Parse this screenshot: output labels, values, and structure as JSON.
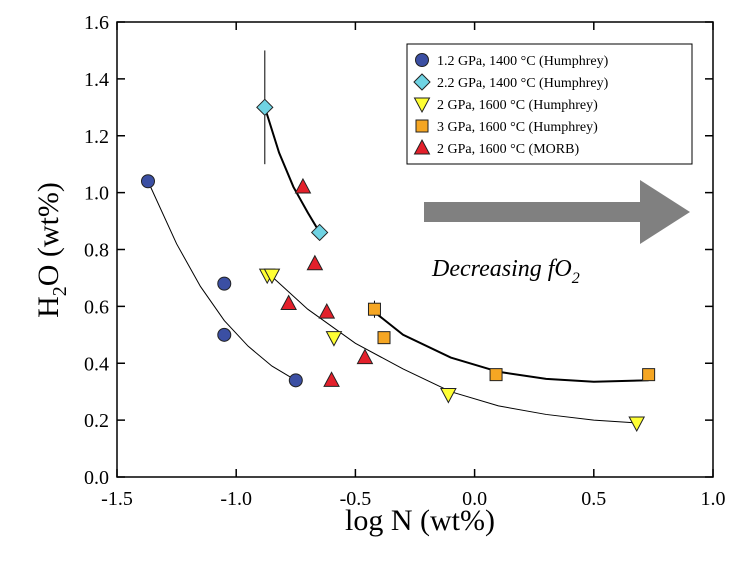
{
  "chart_data": {
    "type": "scatter",
    "xlabel": "log N (wt%)",
    "ylabel": {
      "main": "H",
      "sub": "2",
      "rest": "O (wt%)"
    },
    "annotation": {
      "text": "Decreasing fO",
      "sub": "2"
    },
    "xlim": [
      -1.5,
      1.0
    ],
    "ylim": [
      0,
      1.6
    ],
    "xticks": [
      {
        "value": -1.5,
        "label": "-1.5"
      },
      {
        "value": -1.0,
        "label": "-1.0"
      },
      {
        "value": -0.5,
        "label": "-0.5"
      },
      {
        "value": 0,
        "label": "0.0"
      },
      {
        "value": 0.5,
        "label": "0.5"
      },
      {
        "value": 1.0,
        "label": "1.0"
      }
    ],
    "yticks": [
      {
        "value": 0,
        "label": "0.0"
      },
      0.2,
      0.4,
      0.6,
      0.8,
      {
        "value": 1.0,
        "label": "1.0"
      },
      1.2,
      1.4,
      1.6
    ],
    "legend": "upper right",
    "series": [
      {
        "name": "1.2 GPa, 1400 °C (Humphrey)",
        "marker": "circle",
        "color": "#3b4fa3",
        "x": [
          -1.37,
          -1.05,
          -1.05,
          -0.75
        ],
        "values": [
          1.04,
          0.68,
          0.5,
          0.34
        ],
        "fit": {
          "x": [
            -1.37,
            -1.25,
            -1.15,
            -1.05,
            -0.95,
            -0.85,
            -0.75
          ],
          "y": [
            1.04,
            0.82,
            0.67,
            0.55,
            0.46,
            0.39,
            0.34
          ],
          "width": 1
        }
      },
      {
        "name": "2.2 GPa, 1400 °C (Humphrey)",
        "marker": "diamond",
        "color": "#6fd3e3",
        "x": [
          -0.88,
          -0.65
        ],
        "values": [
          1.3,
          0.86
        ],
        "errors": [
          0.2,
          null
        ],
        "fit": {
          "x": [
            -0.88,
            -0.82,
            -0.76,
            -0.7,
            -0.65
          ],
          "y": [
            1.3,
            1.14,
            1.02,
            0.93,
            0.86
          ],
          "width": 2
        }
      },
      {
        "name": "2 GPa, 1600 °C (Humphrey)",
        "marker": "triangle-down",
        "color": "#ffff33",
        "x": [
          -0.87,
          -0.85,
          -0.59,
          -0.11,
          0.68
        ],
        "values": [
          0.71,
          0.71,
          0.49,
          0.29,
          0.19
        ],
        "fit": {
          "x": [
            -0.87,
            -0.7,
            -0.5,
            -0.3,
            -0.1,
            0.1,
            0.3,
            0.5,
            0.68
          ],
          "y": [
            0.72,
            0.59,
            0.47,
            0.38,
            0.3,
            0.25,
            0.22,
            0.2,
            0.19
          ],
          "width": 1
        }
      },
      {
        "name": "3 GPa, 1600 °C (Humphrey)",
        "marker": "square",
        "color": "#f5a623",
        "x": [
          -0.42,
          -0.38,
          0.09,
          0.73
        ],
        "values": [
          0.59,
          0.49,
          0.36,
          0.36
        ],
        "errors": [
          0.03,
          null,
          null,
          null
        ],
        "fit": {
          "x": [
            -0.42,
            -0.3,
            -0.1,
            0.1,
            0.3,
            0.5,
            0.73
          ],
          "y": [
            0.58,
            0.5,
            0.42,
            0.37,
            0.345,
            0.335,
            0.34
          ],
          "width": 2
        }
      },
      {
        "name": "2 GPa, 1600 °C (MORB)",
        "marker": "triangle-up",
        "color": "#e3202b",
        "x": [
          -0.72,
          -0.67,
          -0.78,
          -0.62,
          -0.46,
          -0.6
        ],
        "values": [
          1.02,
          0.75,
          0.61,
          0.58,
          0.42,
          0.34
        ]
      }
    ]
  }
}
